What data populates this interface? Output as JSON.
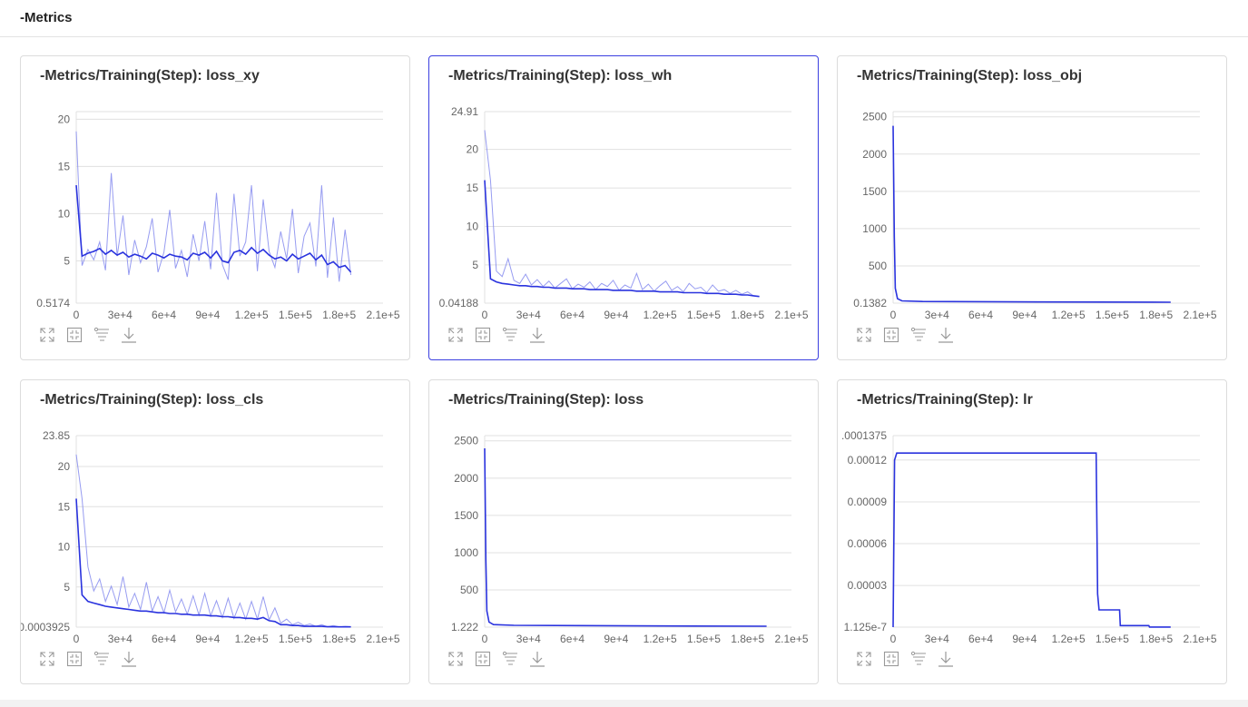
{
  "header": {
    "title": "-Metrics"
  },
  "colors": {
    "line": "#2a33de",
    "raw": "#7d83ee",
    "grid": "#e0e0e0",
    "selected_border": "#3b3fe0"
  },
  "toolbar_icons": [
    "expand-icon",
    "fit-icon",
    "filter-icon",
    "download-icon"
  ],
  "chart_data": [
    {
      "type": "line",
      "title": "-Metrics/Training(Step): loss_xy",
      "selected": false,
      "xlim": [
        0,
        210000
      ],
      "xticks": [
        0,
        30000,
        60000,
        90000,
        120000,
        150000,
        180000,
        210000
      ],
      "xtick_labels": [
        "0",
        "3e+4",
        "6e+4",
        "9e+4",
        "1.2e+5",
        "1.5e+5",
        "1.8e+5",
        "2.1e+5"
      ],
      "ylim": [
        0.5174,
        20.8
      ],
      "yticks": [
        5,
        10,
        15,
        20
      ],
      "ytick_labels": [
        "5",
        "10",
        "15",
        "20"
      ],
      "ymin_label": "0.5174",
      "ymax_label": "",
      "x_step": 4000,
      "series": [
        {
          "name": "raw",
          "values": [
            18.7,
            4.5,
            6.2,
            5.1,
            7.0,
            4.0,
            14.3,
            5.5,
            9.8,
            3.5,
            7.2,
            4.8,
            6.5,
            9.5,
            3.8,
            5.9,
            10.4,
            4.2,
            6.1,
            3.3,
            7.8,
            5.0,
            9.2,
            4.1,
            12.2,
            4.6,
            3.0,
            12.1,
            5.5,
            7.0,
            13.0,
            3.9,
            11.5,
            6.0,
            4.3,
            8.1,
            5.2,
            10.5,
            3.7,
            7.6,
            9.0,
            4.4,
            13.0,
            3.2,
            9.6,
            2.8,
            8.3,
            3.5
          ]
        },
        {
          "name": "smoothed",
          "values": [
            13,
            5.5,
            5.8,
            6.0,
            6.3,
            5.7,
            6.1,
            5.6,
            5.9,
            5.4,
            5.7,
            5.5,
            5.2,
            5.8,
            5.6,
            5.3,
            5.7,
            5.5,
            5.4,
            5.1,
            5.8,
            5.6,
            5.9,
            5.3,
            6.0,
            5.0,
            4.8,
            5.9,
            6.1,
            5.7,
            6.4,
            5.8,
            6.2,
            5.6,
            5.2,
            5.4,
            5.0,
            5.7,
            5.2,
            5.5,
            5.8,
            5.1,
            5.6,
            4.6,
            4.9,
            4.3,
            4.5,
            3.8
          ]
        }
      ]
    },
    {
      "type": "line",
      "title": "-Metrics/Training(Step): loss_wh",
      "selected": true,
      "xlim": [
        0,
        210000
      ],
      "xticks": [
        0,
        30000,
        60000,
        90000,
        120000,
        150000,
        180000,
        210000
      ],
      "xtick_labels": [
        "0",
        "3e+4",
        "6e+4",
        "9e+4",
        "1.2e+5",
        "1.5e+5",
        "1.8e+5",
        "2.1e+5"
      ],
      "ylim": [
        0.04188,
        24.91
      ],
      "yticks": [
        5,
        10,
        15,
        20
      ],
      "ytick_labels": [
        "5",
        "10",
        "15",
        "20"
      ],
      "ymin_label": "0.04188",
      "ymax_label": "24.91",
      "x_step": 4000,
      "series": [
        {
          "name": "raw",
          "values": [
            22.5,
            16,
            4.2,
            3.5,
            5.8,
            3.0,
            2.6,
            3.8,
            2.4,
            3.1,
            2.2,
            2.9,
            2.0,
            2.6,
            3.2,
            1.9,
            2.5,
            2.1,
            2.8,
            1.8,
            2.6,
            2.2,
            3.0,
            1.7,
            2.4,
            2.0,
            3.9,
            1.8,
            2.5,
            1.6,
            2.3,
            2.9,
            1.7,
            2.2,
            1.5,
            2.6,
            1.9,
            2.1,
            1.4,
            2.4,
            1.6,
            1.8,
            1.3,
            1.7,
            1.2,
            1.5,
            1.0,
            0.9
          ]
        },
        {
          "name": "smoothed",
          "values": [
            16,
            3.2,
            2.8,
            2.6,
            2.5,
            2.4,
            2.3,
            2.3,
            2.2,
            2.2,
            2.1,
            2.1,
            2.0,
            2.0,
            2.0,
            1.9,
            1.9,
            1.9,
            1.8,
            1.8,
            1.8,
            1.8,
            1.7,
            1.7,
            1.7,
            1.7,
            1.6,
            1.6,
            1.6,
            1.6,
            1.5,
            1.5,
            1.5,
            1.5,
            1.4,
            1.4,
            1.4,
            1.4,
            1.3,
            1.3,
            1.3,
            1.2,
            1.2,
            1.2,
            1.1,
            1.1,
            1.0,
            0.9
          ]
        }
      ]
    },
    {
      "type": "line",
      "title": "-Metrics/Training(Step): loss_obj",
      "selected": false,
      "xlim": [
        0,
        210000
      ],
      "xticks": [
        0,
        30000,
        60000,
        90000,
        120000,
        150000,
        180000,
        210000
      ],
      "xtick_labels": [
        "0",
        "3e+4",
        "6e+4",
        "9e+4",
        "1.2e+5",
        "1.5e+5",
        "1.8e+5",
        "2.1e+5"
      ],
      "ylim": [
        0.1382,
        2570
      ],
      "yticks": [
        500,
        1000,
        1500,
        2000,
        2500
      ],
      "ytick_labels": [
        "500",
        "1000",
        "1500",
        "2000",
        "2500"
      ],
      "ymin_label": "0.1382",
      "ymax_label": "",
      "series": [
        {
          "name": "smoothed",
          "points": [
            [
              0,
              2380
            ],
            [
              800,
              900
            ],
            [
              1500,
              200
            ],
            [
              3000,
              60
            ],
            [
              6000,
              30
            ],
            [
              20000,
              22
            ],
            [
              100000,
              16
            ],
            [
              190000,
              12
            ]
          ]
        }
      ]
    },
    {
      "type": "line",
      "title": "-Metrics/Training(Step): loss_cls",
      "selected": false,
      "xlim": [
        0,
        210000
      ],
      "xticks": [
        0,
        30000,
        60000,
        90000,
        120000,
        150000,
        180000,
        210000
      ],
      "xtick_labels": [
        "0",
        "3e+4",
        "6e+4",
        "9e+4",
        "1.2e+5",
        "1.5e+5",
        "1.8e+5",
        "2.1e+5"
      ],
      "ylim": [
        0.0003925,
        23.85
      ],
      "yticks": [
        5,
        10,
        15,
        20
      ],
      "ytick_labels": [
        "5",
        "10",
        "15",
        "20"
      ],
      "ymin_label": "0.0003925",
      "ymax_label": "23.85",
      "x_step": 4000,
      "series": [
        {
          "name": "raw",
          "values": [
            21.5,
            16,
            7.5,
            4.5,
            6.0,
            3.2,
            5.1,
            2.8,
            6.3,
            2.5,
            4.2,
            2.2,
            5.6,
            2.0,
            3.8,
            1.8,
            4.6,
            1.9,
            3.5,
            1.6,
            3.9,
            1.5,
            4.2,
            1.4,
            3.3,
            1.2,
            3.6,
            1.1,
            3.0,
            1.0,
            3.2,
            1.0,
            3.8,
            0.9,
            2.4,
            0.5,
            1.0,
            0.3,
            0.6,
            0.2,
            0.4,
            0.1,
            0.3,
            0.05,
            0.2,
            0.03,
            0.1,
            0.05
          ]
        },
        {
          "name": "smoothed",
          "values": [
            16,
            4.0,
            3.2,
            3.0,
            2.8,
            2.6,
            2.5,
            2.4,
            2.3,
            2.2,
            2.1,
            2.0,
            2.0,
            1.9,
            1.8,
            1.8,
            1.7,
            1.7,
            1.6,
            1.6,
            1.5,
            1.5,
            1.5,
            1.4,
            1.4,
            1.3,
            1.3,
            1.2,
            1.2,
            1.1,
            1.1,
            1.0,
            1.2,
            0.8,
            0.7,
            0.3,
            0.3,
            0.2,
            0.2,
            0.1,
            0.1,
            0.1,
            0.1,
            0.05,
            0.05,
            0.03,
            0.03,
            0.03
          ]
        }
      ]
    },
    {
      "type": "line",
      "title": "-Metrics/Training(Step): loss",
      "selected": false,
      "xlim": [
        0,
        210000
      ],
      "xticks": [
        0,
        30000,
        60000,
        90000,
        120000,
        150000,
        180000,
        210000
      ],
      "xtick_labels": [
        "0",
        "3e+4",
        "6e+4",
        "9e+4",
        "1.2e+5",
        "1.5e+5",
        "1.8e+5",
        "2.1e+5"
      ],
      "ylim": [
        1.222,
        2570
      ],
      "yticks": [
        500,
        1000,
        1500,
        2000,
        2500
      ],
      "ytick_labels": [
        "500",
        "1000",
        "1500",
        "2000",
        "2500"
      ],
      "ymin_label": "1.222",
      "ymax_label": "",
      "series": [
        {
          "name": "smoothed",
          "points": [
            [
              0,
              2400
            ],
            [
              800,
              900
            ],
            [
              1500,
              220
            ],
            [
              3000,
              70
            ],
            [
              6000,
              35
            ],
            [
              20000,
              25
            ],
            [
              100000,
              18
            ],
            [
              193000,
              14
            ]
          ]
        }
      ]
    },
    {
      "type": "line",
      "title": "-Metrics/Training(Step): lr",
      "selected": false,
      "xlim": [
        0,
        210000
      ],
      "xticks": [
        0,
        30000,
        60000,
        90000,
        120000,
        150000,
        180000,
        210000
      ],
      "xtick_labels": [
        "0",
        "3e+4",
        "6e+4",
        "9e+4",
        "1.2e+5",
        "1.5e+5",
        "1.8e+5",
        "2.1e+5"
      ],
      "ylim": [
        1.125e-07,
        0.0001375
      ],
      "yticks": [
        3e-05,
        6e-05,
        9e-05,
        0.00012
      ],
      "ytick_labels": [
        "0.00003",
        "0.00006",
        "0.00009",
        "0.00012"
      ],
      "ymin_label": "1.125e-7",
      "ymax_label": ".0001375",
      "series": [
        {
          "name": "smoothed",
          "points": [
            [
              0,
              1.125e-07
            ],
            [
              1000,
              0.00012
            ],
            [
              2500,
              0.000125
            ],
            [
              139000,
              0.000125
            ],
            [
              140000,
              2.4e-05
            ],
            [
              141000,
              1.25e-05
            ],
            [
              155000,
              1.25e-05
            ],
            [
              155500,
              1.2e-06
            ],
            [
              175000,
              1.2e-06
            ],
            [
              175500,
              2e-07
            ],
            [
              190000,
              2e-07
            ]
          ]
        }
      ]
    }
  ]
}
